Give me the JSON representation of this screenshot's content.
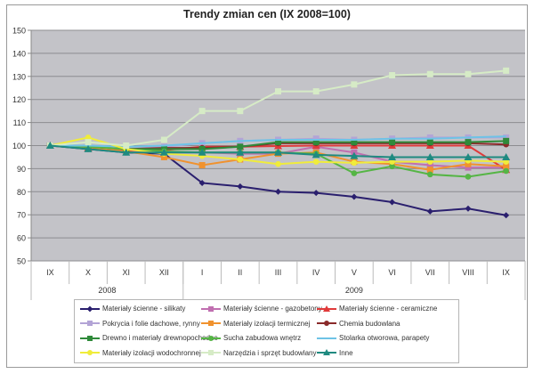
{
  "chart_data": {
    "type": "line",
    "title": "Trendy zmian cen (IX 2008=100)",
    "xlabel": "",
    "ylabel": "",
    "ylim": [
      50,
      150
    ],
    "yticks": [
      50,
      60,
      70,
      80,
      90,
      100,
      110,
      120,
      130,
      140,
      150
    ],
    "grid": true,
    "legend_position": "bottom",
    "categories": [
      "IX",
      "X",
      "XI",
      "XII",
      "I",
      "II",
      "III",
      "IV",
      "V",
      "VI",
      "VII",
      "VIII",
      "IX"
    ],
    "year_groups": [
      {
        "label": "2008",
        "count": 4
      },
      {
        "label": "2009",
        "count": 9
      }
    ],
    "series": [
      {
        "name": "Materiały ścienne - silikaty",
        "color": "#2a1f6e",
        "marker": "diamond",
        "values": [
          100,
          98.5,
          97,
          96.5,
          83.8,
          82.3,
          80,
          79.5,
          77.8,
          75.5,
          71.5,
          72.7,
          69.8
        ]
      },
      {
        "name": "Materiały ścienne - gazobetony",
        "color": "#c06fb0",
        "marker": "square",
        "values": [
          100,
          98.8,
          97.5,
          97,
          97,
          96.5,
          96.5,
          99.5,
          97,
          93,
          91.5,
          90.5,
          90.5
        ]
      },
      {
        "name": "Materiały ścienne - ceramiczne",
        "color": "#e03a3a",
        "marker": "triangle",
        "values": [
          100,
          99,
          98,
          98,
          99.5,
          99.5,
          99.8,
          100,
          100,
          100,
          100,
          100,
          89.5
        ]
      },
      {
        "name": "Pokrycia i folie dachowe, rynny",
        "color": "#b3a4d6",
        "marker": "square",
        "values": [
          100,
          99.5,
          98.5,
          99.5,
          101,
          102,
          102.5,
          103,
          102.5,
          103,
          103.5,
          103.5,
          103.5
        ]
      },
      {
        "name": "Materiały izolacji termicznej",
        "color": "#f0922e",
        "marker": "square",
        "values": [
          100,
          99,
          97.5,
          95,
          91.5,
          94,
          96.5,
          97,
          93,
          92,
          89.5,
          92,
          91
        ]
      },
      {
        "name": "Chemia budowlana",
        "color": "#8a2a2a",
        "marker": "circle",
        "values": [
          100,
          99.5,
          98.5,
          99,
          99,
          99.5,
          101,
          101,
          101,
          101,
          101,
          101,
          100.5
        ]
      },
      {
        "name": "Drewno i materiały drewnopochodne",
        "color": "#2f8a3a",
        "marker": "square",
        "values": [
          100,
          99.5,
          98.5,
          98.5,
          98.5,
          99.5,
          101.5,
          101.5,
          101.5,
          101.5,
          101.5,
          101.5,
          102
        ]
      },
      {
        "name": "Sucha zabudowa wnętrz",
        "color": "#55b545",
        "marker": "circle",
        "values": [
          100,
          99.5,
          98.5,
          97.5,
          97,
          97,
          97,
          96.5,
          88,
          91,
          87.5,
          86.5,
          89
        ]
      },
      {
        "name": "Stolarka otworowa, parapety",
        "color": "#6ec3e6",
        "marker": "none",
        "values": [
          100,
          100,
          99.5,
          100,
          101,
          102,
          102.5,
          102.5,
          102.5,
          103,
          103,
          103.5,
          104
        ]
      },
      {
        "name": "Materiały izolacji wodochronnej",
        "color": "#f0ec3a",
        "marker": "circle",
        "values": [
          100,
          103.5,
          98.5,
          96.5,
          95.5,
          94,
          92,
          93,
          92.5,
          93,
          93,
          93.5,
          93
        ]
      },
      {
        "name": "Narzędzia i sprzęt budowlany",
        "color": "#d6ebc6",
        "marker": "square",
        "values": [
          100,
          101.5,
          100,
          102.5,
          115,
          115,
          123.5,
          123.5,
          126.5,
          130.5,
          131,
          131,
          132.5
        ]
      },
      {
        "name": "Inne",
        "color": "#1f8a80",
        "marker": "triangle",
        "values": [
          100,
          98.5,
          97,
          97,
          97,
          97,
          97,
          96,
          95.5,
          95,
          95,
          95,
          95
        ]
      }
    ]
  }
}
